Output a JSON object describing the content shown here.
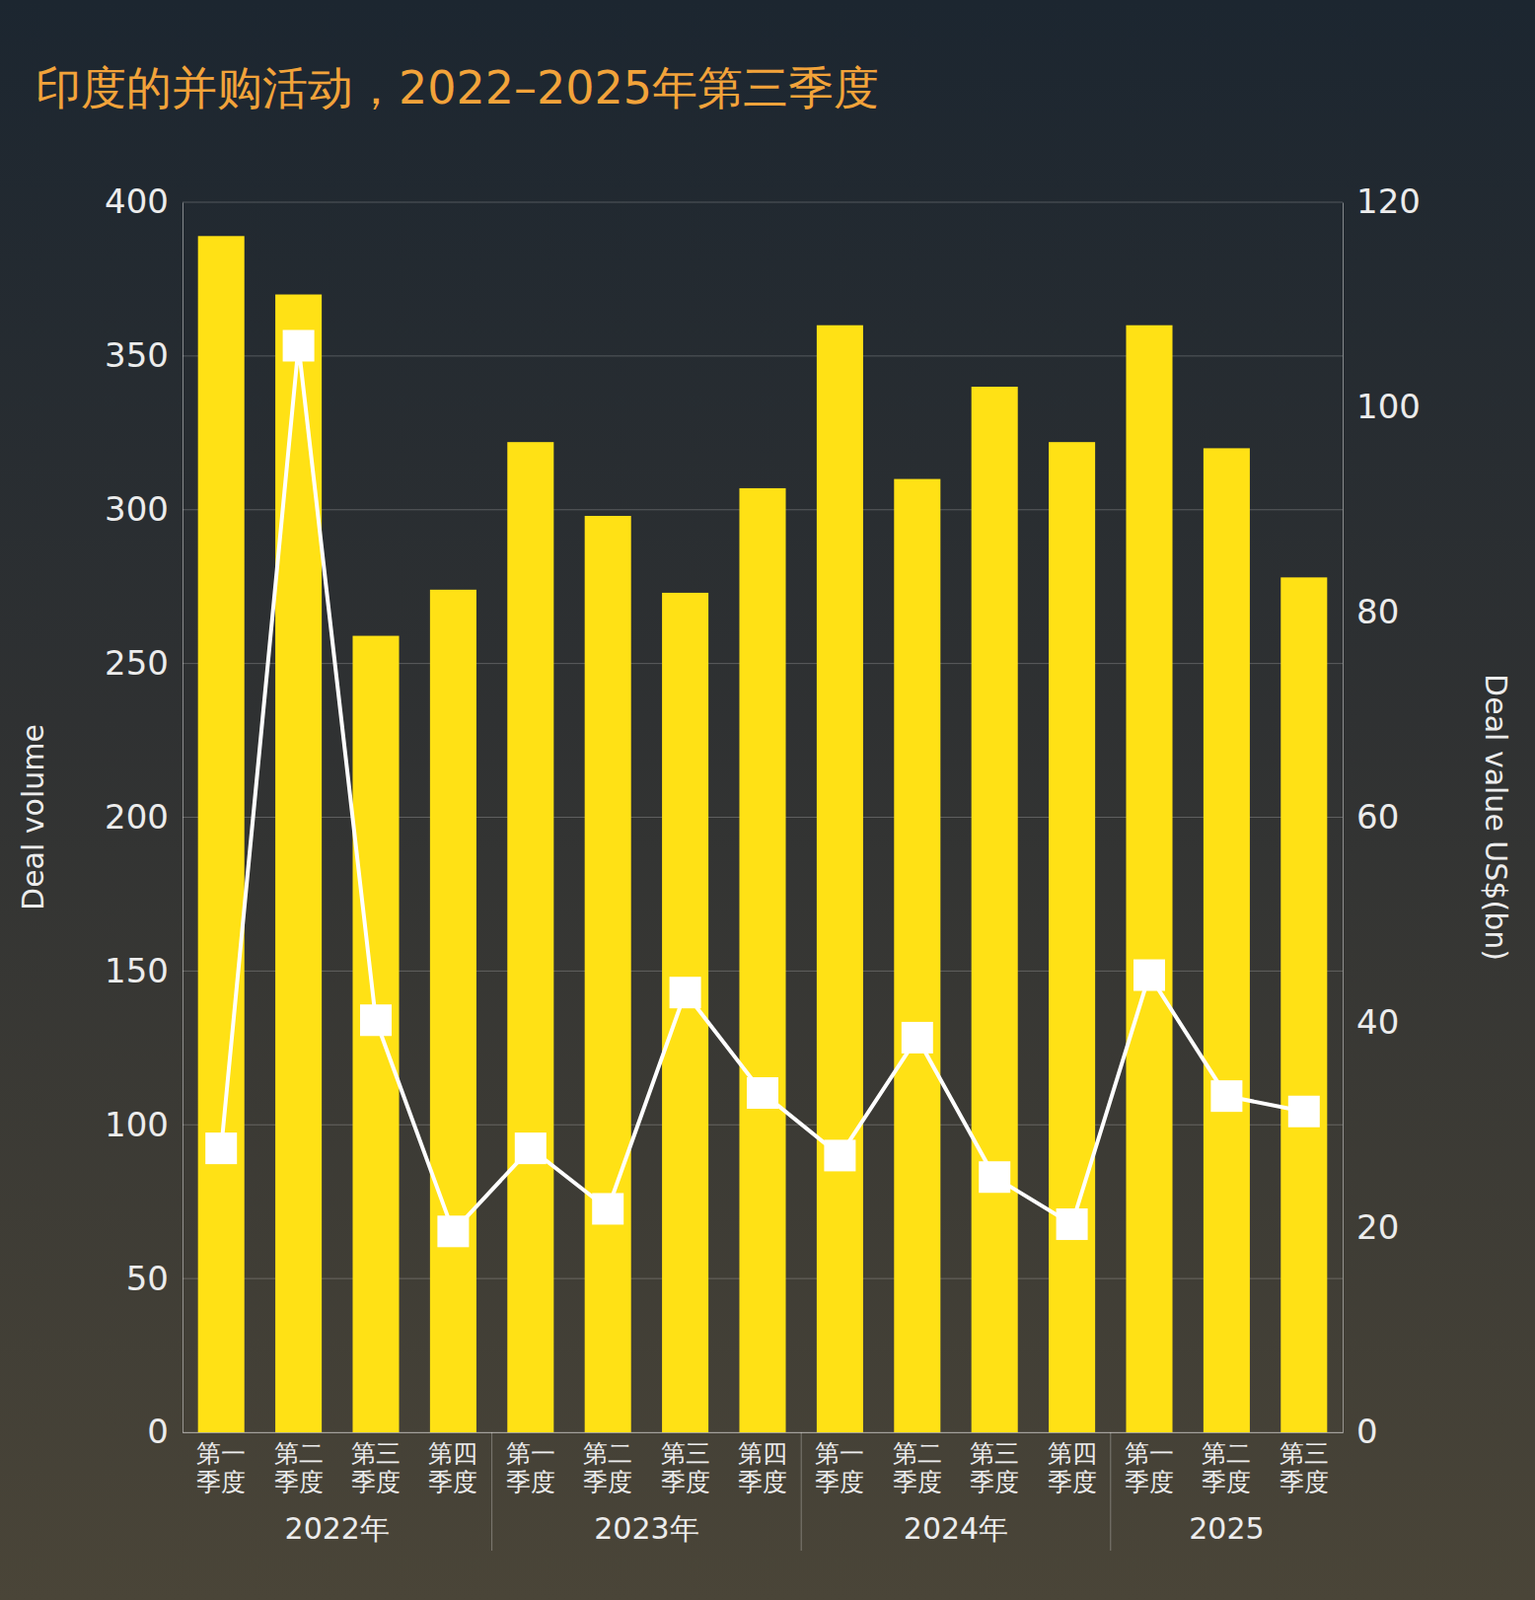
{
  "chart_data": {
    "type": "bar",
    "title": "印度的并购活动，2022–2025年第三季度",
    "categories": [
      "第一季度",
      "第二季度",
      "第三季度",
      "第四季度",
      "第一季度",
      "第二季度",
      "第三季度",
      "第四季度",
      "第一季度",
      "第二季度",
      "第三季度",
      "第四季度",
      "第一季度",
      "第二季度",
      "第三季度"
    ],
    "x_groups": [
      "2022年",
      "2022年",
      "2022年",
      "2022年",
      "2023年",
      "2023年",
      "2023年",
      "2023年",
      "2024年",
      "2024年",
      "2024年",
      "2024年",
      "2025",
      "2025",
      "2025"
    ],
    "ylabel": "Deal volume",
    "y2label": "Deal value US$(bn)",
    "ylim": [
      0,
      400
    ],
    "yticks": [
      0,
      50,
      100,
      150,
      200,
      250,
      300,
      350,
      400
    ],
    "y2lim": [
      0,
      120
    ],
    "y2ticks": [
      0,
      20,
      40,
      60,
      80,
      100,
      120
    ],
    "grid": true,
    "series": [
      {
        "type": "bar",
        "color": "#ffe115",
        "values": [
          389,
          370,
          259,
          274,
          322,
          298,
          273,
          307,
          360,
          310,
          340,
          322,
          360,
          320,
          278
        ]
      },
      {
        "type": "line",
        "axis": "y2",
        "color": "#ffffff",
        "marker": "square",
        "line_style": "solid",
        "values": [
          27.7,
          106,
          40.2,
          19.6,
          27.7,
          21.8,
          42.9,
          33.1,
          27.0,
          38.5,
          24.9,
          20.3,
          44.6,
          32.8,
          31.3
        ]
      }
    ]
  }
}
